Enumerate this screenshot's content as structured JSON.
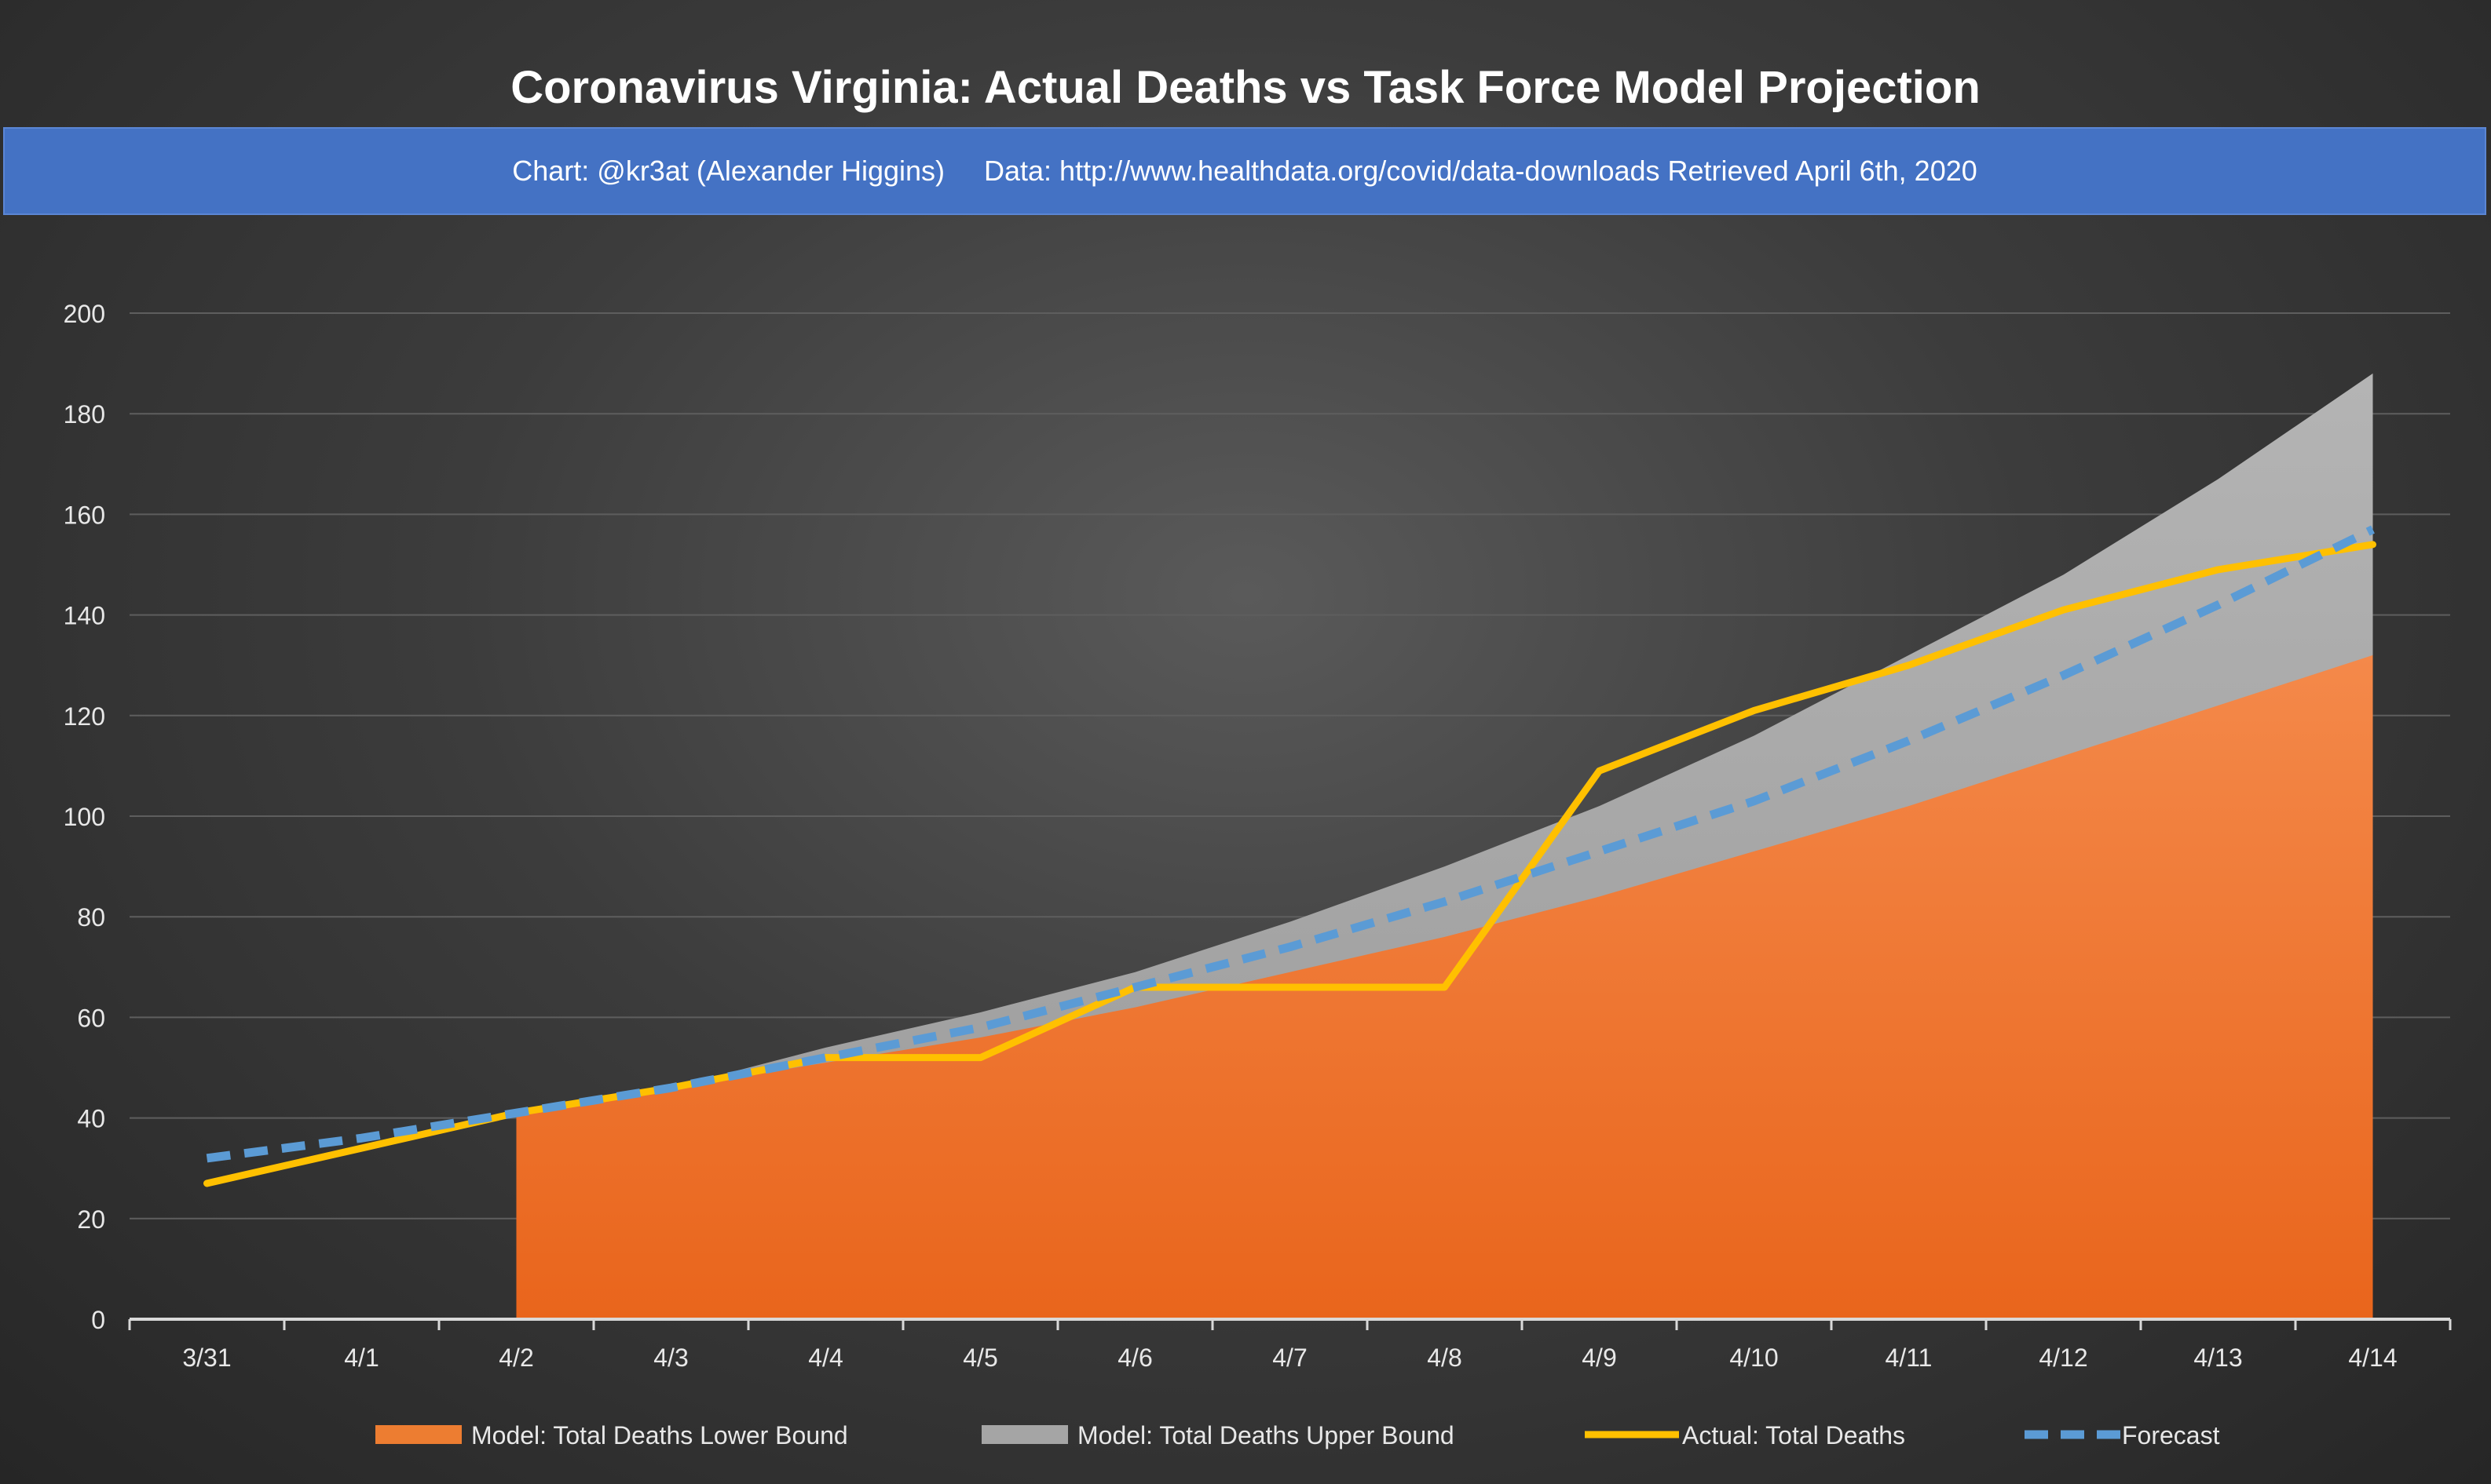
{
  "chart_data": {
    "type": "area",
    "title": "Coronavirus Virginia: Actual Deaths vs Task Force Model Projection",
    "subtitle": "Chart: @kr3at (Alexander Higgins)     Data: http://www.healthdata.org/covid/data-downloads Retrieved April 6th, 2020",
    "categories": [
      "3/31",
      "4/1",
      "4/2",
      "4/3",
      "4/4",
      "4/5",
      "4/6",
      "4/7",
      "4/8",
      "4/9",
      "4/10",
      "4/11",
      "4/12",
      "4/13",
      "4/14"
    ],
    "ylim": [
      0,
      200
    ],
    "yticks": [
      0,
      20,
      40,
      60,
      80,
      100,
      120,
      140,
      160,
      180,
      200
    ],
    "grid": true,
    "legend_position": "bottom",
    "series": [
      {
        "name": "Model: Total Deaths Lower Bound",
        "type": "area",
        "color": "#ed7d31",
        "values": [
          null,
          null,
          41,
          46,
          51,
          56,
          62,
          69,
          76,
          84,
          93,
          102,
          112,
          122,
          132
        ]
      },
      {
        "name": "Model: Total Deaths Upper Bound",
        "type": "area",
        "color": "#a5a5a5",
        "values": [
          null,
          null,
          41,
          46,
          54,
          61,
          69,
          79,
          90,
          102,
          116,
          132,
          148,
          167,
          188
        ]
      },
      {
        "name": "Actual: Total Deaths",
        "type": "line",
        "color": "#ffc000",
        "values": [
          27,
          34,
          41,
          46,
          52,
          52,
          66,
          66,
          66,
          109,
          121,
          130,
          141,
          149,
          154
        ]
      },
      {
        "name": "Forecast",
        "type": "line-dashed",
        "color": "#5b9bd5",
        "values": [
          32,
          36,
          41,
          46,
          52,
          58,
          66,
          74,
          83,
          93,
          103,
          115,
          128,
          142,
          157
        ]
      }
    ]
  }
}
